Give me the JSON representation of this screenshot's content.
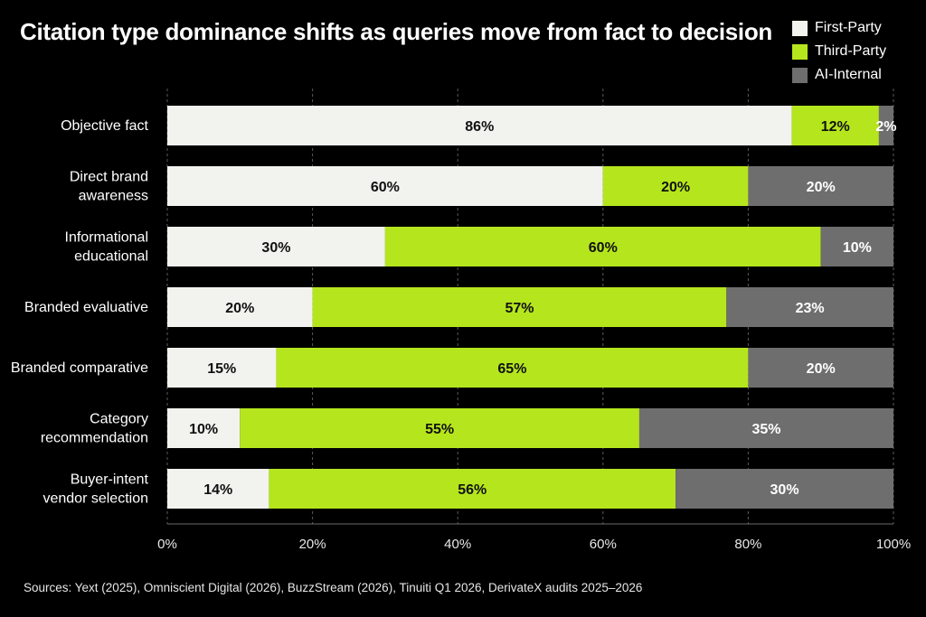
{
  "title": "Citation type dominance shifts as queries move from fact to decision",
  "source": "Sources: Yext (2025), Omniscient Digital (2026), BuzzStream (2026), Tinuiti Q1 2026, DerivateX audits 2025–2026",
  "chart_data": {
    "type": "bar",
    "orientation": "horizontal",
    "stacked": true,
    "title": "Citation type dominance shifts as queries move from fact to decision",
    "xlabel": "",
    "ylabel": "",
    "xlim": [
      0,
      100
    ],
    "x_ticks": [
      "0%",
      "20%",
      "40%",
      "60%",
      "80%",
      "100%"
    ],
    "grid": "vertical dashed",
    "legend_position": "top-right",
    "categories": [
      [
        "Objective fact"
      ],
      [
        "Direct brand",
        "awareness"
      ],
      [
        "Informational",
        "educational"
      ],
      [
        "Branded evaluative"
      ],
      [
        "Branded comparative"
      ],
      [
        "Category",
        "recommendation"
      ],
      [
        "Buyer-intent",
        "vendor selection"
      ]
    ],
    "series": [
      {
        "name": "First-Party",
        "color": "#f2f2ee",
        "label_color": "#111111",
        "values": [
          86,
          60,
          30,
          20,
          15,
          10,
          14
        ]
      },
      {
        "name": "Third-Party",
        "color": "#b5e61d",
        "label_color": "#111111",
        "values": [
          12,
          20,
          60,
          57,
          65,
          55,
          56
        ]
      },
      {
        "name": "AI-Internal",
        "color": "#6e6e6e",
        "label_color": "#ffffff",
        "values": [
          2,
          20,
          10,
          23,
          20,
          35,
          30
        ]
      }
    ]
  }
}
